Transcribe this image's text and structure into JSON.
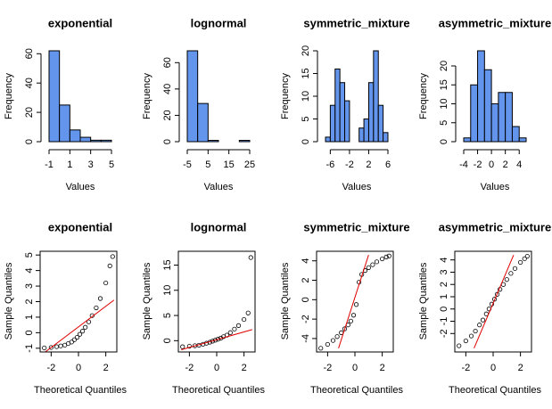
{
  "chart_data": [
    {
      "type": "histogram",
      "title": "exponential",
      "xlabel": "Values",
      "ylabel": "Frequency",
      "color": "#6495ed",
      "bins": [
        -1,
        0,
        1,
        2,
        3,
        4,
        5
      ],
      "values": [
        62,
        25,
        8,
        3,
        1,
        1
      ],
      "xticks": [
        -1,
        1,
        3,
        5
      ],
      "ylim": [
        0,
        62
      ],
      "yticks": [
        0,
        20,
        40,
        60
      ]
    },
    {
      "type": "histogram",
      "title": "lognormal",
      "xlabel": "Values",
      "ylabel": "Frequency",
      "color": "#6495ed",
      "bins": [
        -5,
        0,
        5,
        10,
        15,
        20,
        25
      ],
      "values": [
        69,
        29,
        1,
        0,
        0,
        1
      ],
      "xticks": [
        -5,
        5,
        15,
        25
      ],
      "ylim": [
        0,
        69
      ],
      "yticks": [
        0,
        20,
        40,
        60
      ]
    },
    {
      "type": "histogram",
      "title": "symmetric_mixture",
      "xlabel": "Values",
      "ylabel": "Frequency",
      "color": "#6495ed",
      "bins": [
        -7,
        -6,
        -5,
        -4,
        -3,
        -2,
        -1,
        0,
        1,
        2,
        3,
        4,
        5,
        6
      ],
      "values": [
        1,
        8,
        16,
        13,
        9,
        0,
        0,
        3,
        5,
        13,
        20,
        8,
        2
      ],
      "xticks": [
        -6,
        -2,
        2,
        6
      ],
      "ylim": [
        0,
        20
      ],
      "yticks": [
        0,
        5,
        10,
        15,
        20
      ]
    },
    {
      "type": "histogram",
      "title": "asymmetric_mixture",
      "xlabel": "Values",
      "ylabel": "Frequency",
      "color": "#6495ed",
      "bins": [
        -4,
        -3,
        -2,
        -1,
        0,
        1,
        2,
        3,
        4,
        5
      ],
      "values": [
        1,
        15,
        24,
        19,
        10,
        13,
        13,
        4,
        1
      ],
      "xticks": [
        -4,
        -2,
        0,
        2,
        4
      ],
      "ylim": [
        0,
        24
      ],
      "yticks": [
        0,
        5,
        10,
        15,
        20
      ]
    },
    {
      "type": "qq",
      "title": "exponential",
      "xlabel": "Theoretical Quantiles",
      "ylabel": "Sample Quantiles",
      "line_color": "#e00000",
      "x": [
        -2.5,
        -2,
        -1.6,
        -1.3,
        -1,
        -0.75,
        -0.5,
        -0.3,
        -0.1,
        0.1,
        0.3,
        0.5,
        0.75,
        1,
        1.3,
        1.6,
        2,
        2.3,
        2.5
      ],
      "values": [
        -0.98,
        -0.95,
        -0.9,
        -0.85,
        -0.8,
        -0.7,
        -0.6,
        -0.45,
        -0.3,
        -0.1,
        0.1,
        0.35,
        0.7,
        1.1,
        1.6,
        2.2,
        3.2,
        4.3,
        4.9
      ],
      "line_x": [
        -2.6,
        2.6
      ],
      "line_y": [
        -1.35,
        2.1
      ],
      "xlim": [
        -2.6,
        2.6
      ],
      "xticks": [
        -2,
        0,
        2
      ],
      "ylim": [
        -1,
        5
      ],
      "yticks": [
        -1,
        0,
        1,
        2,
        3,
        4,
        5
      ]
    },
    {
      "type": "qq",
      "title": "lognormal",
      "xlabel": "Theoretical Quantiles",
      "ylabel": "Sample Quantiles",
      "line_color": "#e00000",
      "x": [
        -2.5,
        -2,
        -1.6,
        -1.3,
        -1,
        -0.75,
        -0.5,
        -0.3,
        -0.1,
        0.1,
        0.3,
        0.5,
        0.75,
        1,
        1.3,
        1.6,
        2,
        2.3,
        2.5
      ],
      "values": [
        -1.2,
        -1.1,
        -1,
        -0.9,
        -0.7,
        -0.5,
        -0.3,
        -0.1,
        0.1,
        0.3,
        0.5,
        0.8,
        1.1,
        1.6,
        2.3,
        3,
        4.2,
        5.5,
        16.5
      ],
      "line_x": [
        -2.6,
        2.6
      ],
      "line_y": [
        -1.8,
        2.2
      ],
      "xlim": [
        -2.6,
        2.6
      ],
      "xticks": [
        -2,
        0,
        2
      ],
      "ylim": [
        -1.5,
        17
      ],
      "yticks": [
        0,
        5,
        10,
        15
      ]
    },
    {
      "type": "qq",
      "title": "symmetric_mixture",
      "xlabel": "Theoretical Quantiles",
      "ylabel": "Sample Quantiles",
      "line_color": "#e00000",
      "x": [
        -2.5,
        -2,
        -1.6,
        -1.3,
        -1,
        -0.75,
        -0.5,
        -0.3,
        -0.1,
        0.1,
        0.3,
        0.5,
        0.75,
        1,
        1.3,
        1.6,
        2,
        2.3,
        2.5
      ],
      "values": [
        -5,
        -4.6,
        -4.2,
        -3.8,
        -3.4,
        -3,
        -2.6,
        -2.2,
        -1.6,
        -0.5,
        1.8,
        2.6,
        3,
        3.3,
        3.6,
        3.9,
        4.2,
        4.4,
        4.5
      ],
      "line_x": [
        -1.2,
        1.0
      ],
      "line_y": [
        -5,
        4.6
      ],
      "xlim": [
        -2.6,
        2.6
      ],
      "xticks": [
        -2,
        0,
        2
      ],
      "ylim": [
        -5,
        4.6
      ],
      "yticks": [
        -4,
        -2,
        0,
        2,
        4
      ]
    },
    {
      "type": "qq",
      "title": "asymmetric_mixture",
      "xlabel": "Theoretical Quantiles",
      "ylabel": "Sample Quantiles",
      "line_color": "#e00000",
      "x": [
        -2.5,
        -2,
        -1.6,
        -1.3,
        -1,
        -0.75,
        -0.5,
        -0.3,
        -0.1,
        0.1,
        0.3,
        0.5,
        0.75,
        1,
        1.3,
        1.6,
        2,
        2.3,
        2.5
      ],
      "values": [
        -3,
        -2.6,
        -2.2,
        -1.8,
        -1.3,
        -0.9,
        -0.4,
        0,
        0.4,
        0.8,
        1.2,
        1.6,
        2.0,
        2.4,
        2.9,
        3.3,
        3.8,
        4.1,
        4.3
      ],
      "line_x": [
        -1.4,
        1.5
      ],
      "line_y": [
        -3.2,
        4.4
      ],
      "xlim": [
        -2.6,
        2.6
      ],
      "xticks": [
        -2,
        0,
        2
      ],
      "ylim": [
        -3.2,
        4.4
      ],
      "yticks": [
        -2,
        -1,
        0,
        1,
        2,
        3,
        4
      ]
    }
  ]
}
